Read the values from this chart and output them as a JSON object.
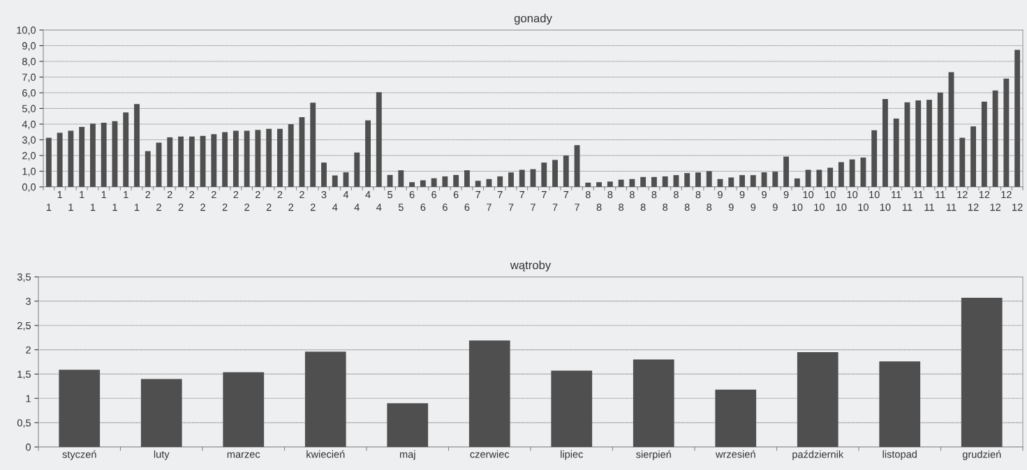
{
  "chart_data": [
    {
      "type": "bar",
      "title": "gonady",
      "categories": [
        "1",
        "1",
        "1",
        "1",
        "1",
        "1",
        "1",
        "1",
        "1",
        "2",
        "2",
        "2",
        "2",
        "2",
        "2",
        "2",
        "2",
        "2",
        "2",
        "2",
        "2",
        "2",
        "2",
        "2",
        "2",
        "3",
        "4",
        "4",
        "4",
        "4",
        "4",
        "5",
        "5",
        "6",
        "6",
        "6",
        "6",
        "6",
        "6",
        "7",
        "7",
        "7",
        "7",
        "7",
        "7",
        "7",
        "7",
        "7",
        "7",
        "8",
        "8",
        "8",
        "8",
        "8",
        "8",
        "8",
        "8",
        "8",
        "8",
        "8",
        "8",
        "9",
        "9",
        "9",
        "9",
        "9",
        "9",
        "9",
        "10",
        "10",
        "10",
        "10",
        "10",
        "10",
        "10",
        "10",
        "10",
        "11",
        "11",
        "11",
        "11",
        "11",
        "11",
        "12",
        "12",
        "12",
        "12",
        "12",
        "12"
      ],
      "series": [
        {
          "color": "#4f4f4f",
          "values": [
            3.13,
            3.45,
            3.58,
            3.82,
            4.03,
            4.09,
            4.19,
            4.75,
            5.28,
            2.28,
            2.82,
            3.16,
            3.21,
            3.21,
            3.25,
            3.36,
            3.49,
            3.58,
            3.58,
            3.63,
            3.7,
            3.7,
            4.0,
            4.45,
            5.37,
            1.55,
            0.73,
            0.93,
            2.19,
            4.24,
            6.03,
            0.76,
            1.06,
            0.3,
            0.42,
            0.55,
            0.67,
            0.76,
            1.06,
            0.39,
            0.5,
            0.67,
            0.92,
            1.09,
            1.13,
            1.55,
            1.72,
            2.0,
            2.66,
            0.27,
            0.3,
            0.34,
            0.46,
            0.5,
            0.63,
            0.63,
            0.67,
            0.75,
            0.88,
            0.92,
            1.0,
            0.5,
            0.6,
            0.75,
            0.75,
            0.93,
            0.97,
            1.93,
            0.54,
            1.09,
            1.09,
            1.22,
            1.58,
            1.75,
            1.87,
            3.61,
            5.6,
            4.36,
            5.39,
            5.51,
            5.55,
            6.01,
            7.31,
            3.13,
            3.85,
            5.43,
            6.15,
            6.9,
            8.73
          ]
        }
      ],
      "ylim": [
        0,
        10
      ],
      "yticks": [
        {
          "value": 0,
          "label": "0,0"
        },
        {
          "value": 1,
          "label": "1,0"
        },
        {
          "value": 2,
          "label": "2,0"
        },
        {
          "value": 3,
          "label": "3,0"
        },
        {
          "value": 4,
          "label": "4,0"
        },
        {
          "value": 5,
          "label": "5,0"
        },
        {
          "value": 6,
          "label": "6,0"
        },
        {
          "value": 7,
          "label": "7,0"
        },
        {
          "value": 8,
          "label": "8,0"
        },
        {
          "value": 9,
          "label": "9,0"
        },
        {
          "value": 10,
          "label": "10,0"
        }
      ],
      "grid": "y"
    },
    {
      "type": "bar",
      "title": "wątroby",
      "categories": [
        "styczeń",
        "luty",
        "marzec",
        "kwiecień",
        "maj",
        "czerwiec",
        "lipiec",
        "sierpień",
        "wrzesień",
        "październik",
        "listopad",
        "grudzień"
      ],
      "series": [
        {
          "color": "#4f4f4f",
          "values": [
            1.59,
            1.4,
            1.54,
            1.96,
            0.9,
            2.19,
            1.57,
            1.8,
            1.18,
            1.95,
            1.76,
            3.07
          ]
        }
      ],
      "ylim": [
        0,
        3.5
      ],
      "yticks": [
        0,
        {
          "value": 0.5,
          "label": "0,5"
        },
        1,
        {
          "value": 1.5,
          "label": "1,5"
        },
        2,
        {
          "value": 2.5,
          "label": "2,5"
        },
        3,
        {
          "value": 3.5,
          "label": "3,5"
        }
      ],
      "grid": "y"
    }
  ]
}
